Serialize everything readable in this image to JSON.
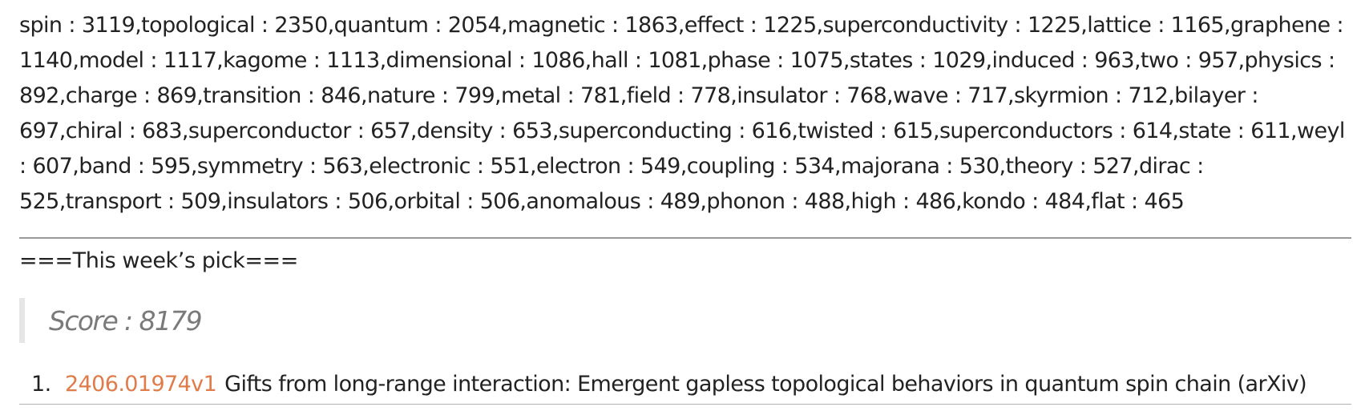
{
  "keywords_text": "spin : 3119,topological : 2350,quantum : 2054,magnetic : 1863,effect : 1225,superconductivity : 1225,lattice : 1165,graphene : 1140,model : 1117,kagome : 1113,dimensional : 1086,hall : 1081,phase : 1075,states : 1029,induced : 963,two : 957,physics : 892,charge : 869,transition : 846,nature : 799,metal : 781,field : 778,insulator : 768,wave : 717,skyrmion : 712,bilayer : 697,chiral : 683,superconductor : 657,density : 653,superconducting : 616,twisted : 615,superconductors : 614,state : 611,weyl : 607,band : 595,symmetry : 563,electronic : 551,electron : 549,coupling : 534,majorana : 530,theory : 527,dirac : 525,transport : 509,insulators : 506,orbital : 506,anomalous : 489,phonon : 488,high : 486,kondo : 484,flat : 465",
  "pick": {
    "heading": "===This week’s pick===",
    "score": "Score : 8179",
    "items": [
      {
        "number": "1.",
        "arxiv_id": "2406.01974v1",
        "title": "Gifts from long-range interaction: Emergent gapless topological behaviors in quantum spin chain (arXiv)"
      }
    ]
  },
  "colors": {
    "link": "#e07b4a",
    "text": "#222222",
    "score": "#7a7a7a",
    "quote_border": "#e6e6e6",
    "rule": "#9a9a9a"
  }
}
